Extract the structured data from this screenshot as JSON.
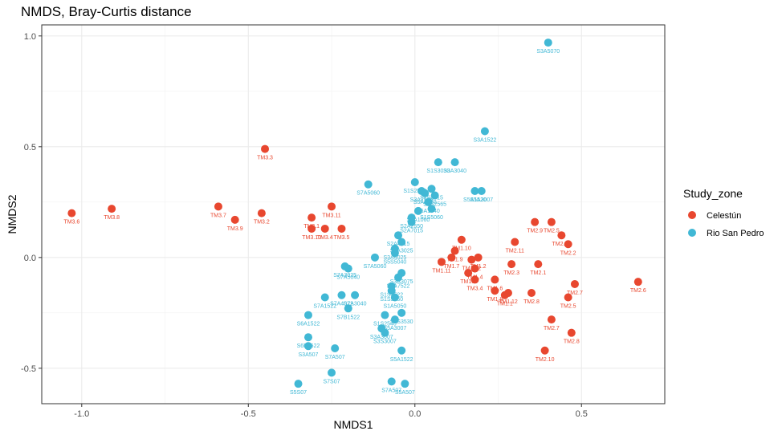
{
  "chart_data": {
    "type": "scatter",
    "title": "NMDS, Bray-Curtis distance",
    "xlabel": "NMDS1",
    "ylabel": "NMDS2",
    "xlim": [
      -1.12,
      0.75
    ],
    "ylim": [
      -0.66,
      1.05
    ],
    "x_ticks": [
      -1.0,
      -0.5,
      0.0,
      0.5
    ],
    "x_tick_labels": [
      "-1.0",
      "-0.5",
      "0.0",
      "0.5"
    ],
    "y_ticks": [
      -0.5,
      0.0,
      0.5,
      1.0
    ],
    "y_tick_labels": [
      "-0.5",
      "0.0",
      "0.5",
      "1.0"
    ],
    "grid": true,
    "legend": {
      "title": "Study_zone",
      "placement": "right",
      "entries": [
        {
          "name": "Celestún",
          "color": "#E8472F"
        },
        {
          "name": "Rio San Pedro",
          "color": "#41B8D5"
        }
      ]
    },
    "series": [
      {
        "name": "Celestún",
        "color": "#E8472F",
        "points": [
          {
            "x": -1.03,
            "y": 0.2,
            "label": "TM3.6"
          },
          {
            "x": -0.91,
            "y": 0.22,
            "label": "TM3.8"
          },
          {
            "x": -0.59,
            "y": 0.23,
            "label": "TM3.7"
          },
          {
            "x": -0.54,
            "y": 0.17,
            "label": "TM3.9"
          },
          {
            "x": -0.46,
            "y": 0.2,
            "label": "TM3.2"
          },
          {
            "x": -0.45,
            "y": 0.49,
            "label": "TM3.3"
          },
          {
            "x": -0.31,
            "y": 0.18,
            "label": "TM3.1"
          },
          {
            "x": -0.31,
            "y": 0.13,
            "label": "TM3.10"
          },
          {
            "x": -0.27,
            "y": 0.13,
            "label": "TM3.4"
          },
          {
            "x": -0.25,
            "y": 0.23,
            "label": "TM3.11"
          },
          {
            "x": -0.22,
            "y": 0.13,
            "label": "TM3.5"
          },
          {
            "x": 0.14,
            "y": 0.08,
            "label": "TM1.10"
          },
          {
            "x": 0.08,
            "y": -0.02,
            "label": "TM1.11"
          },
          {
            "x": 0.11,
            "y": 0.0,
            "label": "TM1.7"
          },
          {
            "x": 0.12,
            "y": 0.03,
            "label": "TM1.9"
          },
          {
            "x": 0.17,
            "y": -0.01,
            "label": "TM1.12"
          },
          {
            "x": 0.19,
            "y": 0.0,
            "label": "TM1.2"
          },
          {
            "x": 0.16,
            "y": -0.07,
            "label": "TM1.5"
          },
          {
            "x": 0.18,
            "y": -0.05,
            "label": "TM1.4"
          },
          {
            "x": 0.18,
            "y": -0.1,
            "label": "TM3.4"
          },
          {
            "x": 0.24,
            "y": -0.1,
            "label": "TM1.6"
          },
          {
            "x": 0.24,
            "y": -0.15,
            "label": "TM1.8"
          },
          {
            "x": 0.27,
            "y": -0.17,
            "label": "TM1.1"
          },
          {
            "x": 0.28,
            "y": -0.16,
            "label": "TM1.12"
          },
          {
            "x": 0.29,
            "y": -0.03,
            "label": "TM2.3"
          },
          {
            "x": 0.3,
            "y": 0.07,
            "label": "TM2.11"
          },
          {
            "x": 0.35,
            "y": -0.16,
            "label": "TM2.8"
          },
          {
            "x": 0.36,
            "y": 0.16,
            "label": "TM2.9"
          },
          {
            "x": 0.37,
            "y": -0.03,
            "label": "TM2.1"
          },
          {
            "x": 0.41,
            "y": 0.16,
            "label": "TM2.5"
          },
          {
            "x": 0.44,
            "y": 0.1,
            "label": "TM2.12"
          },
          {
            "x": 0.46,
            "y": 0.06,
            "label": "TM2.2"
          },
          {
            "x": 0.48,
            "y": -0.12,
            "label": "TM2.7"
          },
          {
            "x": 0.46,
            "y": -0.18,
            "label": "TM2.5"
          },
          {
            "x": 0.41,
            "y": -0.28,
            "label": "TM2.7"
          },
          {
            "x": 0.47,
            "y": -0.34,
            "label": "TM2.8"
          },
          {
            "x": 0.39,
            "y": -0.42,
            "label": "TM2.10"
          },
          {
            "x": 0.67,
            "y": -0.11,
            "label": "TM2.6"
          }
        ]
      },
      {
        "name": "Rio San Pedro",
        "color": "#41B8D5",
        "points": [
          {
            "x": 0.4,
            "y": 0.97,
            "label": "S3A5070"
          },
          {
            "x": 0.21,
            "y": 0.57,
            "label": "S3A1522"
          },
          {
            "x": 0.07,
            "y": 0.43,
            "label": "S1S3030"
          },
          {
            "x": 0.12,
            "y": 0.43,
            "label": "S3A3040"
          },
          {
            "x": 0.18,
            "y": 0.3,
            "label": "S5A1520"
          },
          {
            "x": 0.2,
            "y": 0.3,
            "label": "S5A3007"
          },
          {
            "x": 0.0,
            "y": 0.34,
            "label": "S1S2575"
          },
          {
            "x": -0.14,
            "y": 0.33,
            "label": "S7A5060"
          },
          {
            "x": 0.05,
            "y": 0.31,
            "label": "S1S2015"
          },
          {
            "x": 0.06,
            "y": 0.28,
            "label": "S1S2565"
          },
          {
            "x": 0.02,
            "y": 0.3,
            "label": "S3A2575"
          },
          {
            "x": 0.03,
            "y": 0.29,
            "label": "S5A4050"
          },
          {
            "x": 0.04,
            "y": 0.25,
            "label": "S5A1540"
          },
          {
            "x": 0.05,
            "y": 0.22,
            "label": "S1S5060"
          },
          {
            "x": 0.01,
            "y": 0.21,
            "label": "S2A1060"
          },
          {
            "x": -0.01,
            "y": 0.18,
            "label": "S2A2550"
          },
          {
            "x": -0.01,
            "y": 0.16,
            "label": "S2A7015"
          },
          {
            "x": -0.05,
            "y": 0.1,
            "label": "S2A4015"
          },
          {
            "x": -0.04,
            "y": 0.07,
            "label": "S3A3025"
          },
          {
            "x": -0.06,
            "y": 0.04,
            "label": "S3A4025"
          },
          {
            "x": -0.06,
            "y": 0.02,
            "label": "S5S5040"
          },
          {
            "x": -0.12,
            "y": 0.0,
            "label": "S7A5060"
          },
          {
            "x": -0.21,
            "y": -0.04,
            "label": "S7A3025"
          },
          {
            "x": -0.2,
            "y": -0.05,
            "label": "S7A5040"
          },
          {
            "x": -0.04,
            "y": -0.07,
            "label": "S3A3075"
          },
          {
            "x": -0.05,
            "y": -0.09,
            "label": "S5A7522"
          },
          {
            "x": -0.07,
            "y": -0.13,
            "label": "S1S3522"
          },
          {
            "x": -0.07,
            "y": -0.15,
            "label": "S1S5060"
          },
          {
            "x": -0.27,
            "y": -0.18,
            "label": "S7A1522"
          },
          {
            "x": -0.22,
            "y": -0.17,
            "label": "S7A4022"
          },
          {
            "x": -0.18,
            "y": -0.17,
            "label": "S7A3040"
          },
          {
            "x": -0.06,
            "y": -0.18,
            "label": "S1A5050"
          },
          {
            "x": -0.2,
            "y": -0.23,
            "label": "S7B1522"
          },
          {
            "x": -0.04,
            "y": -0.25,
            "label": "S1S3530"
          },
          {
            "x": -0.09,
            "y": -0.26,
            "label": "S1S2540"
          },
          {
            "x": -0.06,
            "y": -0.28,
            "label": "S5A3007"
          },
          {
            "x": -0.32,
            "y": -0.26,
            "label": "S6A1522"
          },
          {
            "x": -0.1,
            "y": -0.32,
            "label": "S3A3007"
          },
          {
            "x": -0.09,
            "y": -0.34,
            "label": "S3S3007"
          },
          {
            "x": -0.32,
            "y": -0.36,
            "label": "S6B1522"
          },
          {
            "x": -0.32,
            "y": -0.4,
            "label": "S3A507"
          },
          {
            "x": -0.24,
            "y": -0.41,
            "label": "S7A507"
          },
          {
            "x": -0.04,
            "y": -0.42,
            "label": "S5A1522"
          },
          {
            "x": -0.25,
            "y": -0.52,
            "label": "S7S07"
          },
          {
            "x": -0.35,
            "y": -0.57,
            "label": "S5S07"
          },
          {
            "x": -0.07,
            "y": -0.56,
            "label": "S7A507"
          },
          {
            "x": -0.03,
            "y": -0.57,
            "label": "S5A507"
          }
        ]
      }
    ]
  }
}
